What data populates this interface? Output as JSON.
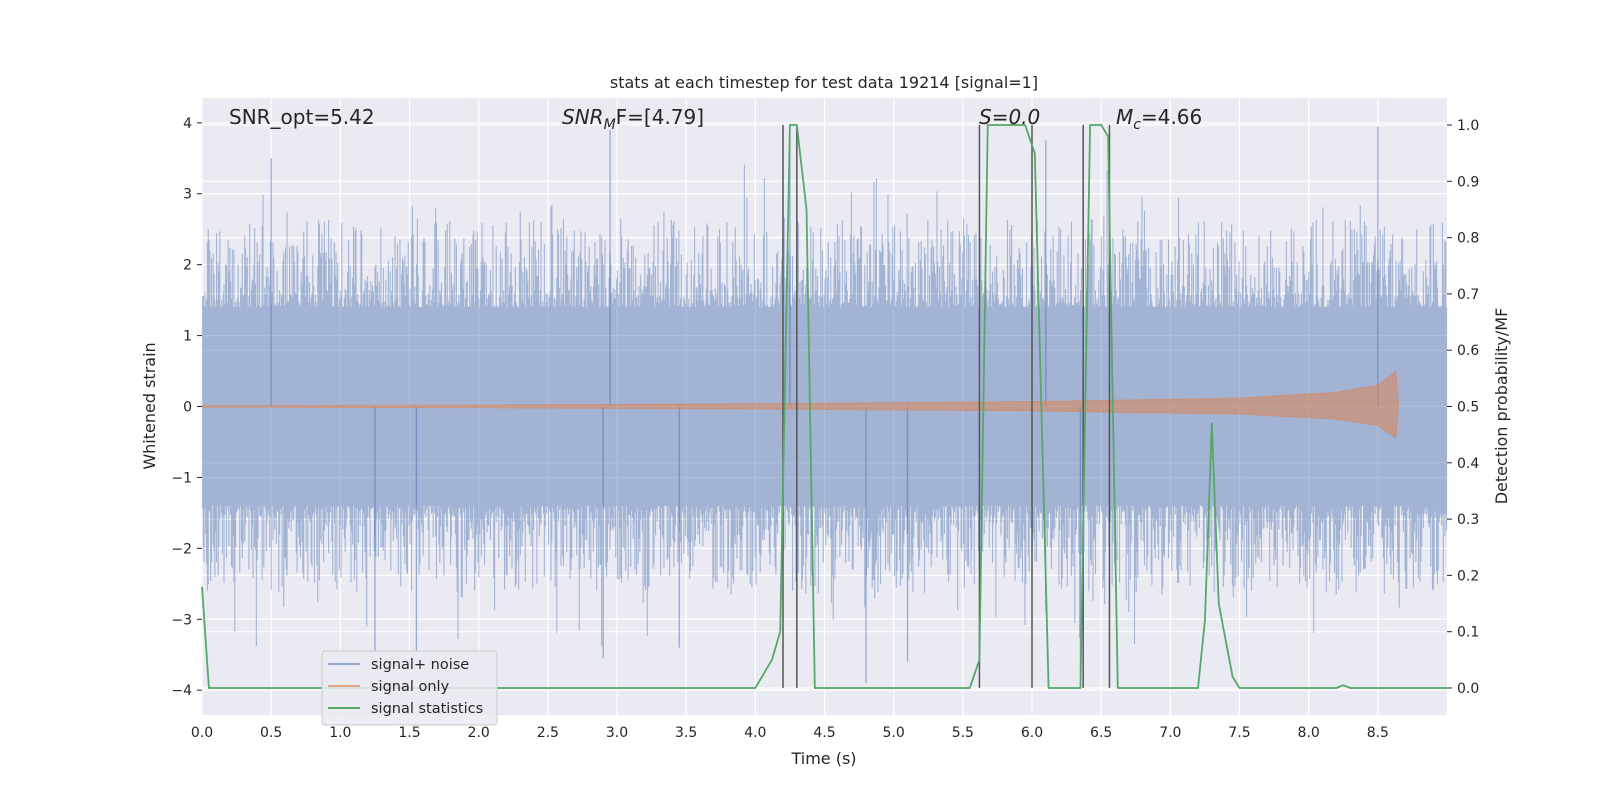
{
  "chart_data": {
    "type": "line",
    "title": "stats at each timestep for test data 19214 [signal=1]",
    "xlabel": "Time (s)",
    "ylabel_left": "Whitened strain",
    "ylabel_right": "Detection probability/MF",
    "xlim": [
      0.0,
      9.0
    ],
    "ylim_left": [
      -4.35,
      4.35
    ],
    "ylim_right": [
      -0.048,
      1.048
    ],
    "x_ticks": [
      "0.0",
      "0.5",
      "1.0",
      "1.5",
      "2.0",
      "2.5",
      "3.0",
      "3.5",
      "4.0",
      "4.5",
      "5.0",
      "5.5",
      "6.0",
      "6.5",
      "7.0",
      "7.5",
      "8.0",
      "8.5"
    ],
    "y_ticks_left": [
      "4",
      "3",
      "2",
      "1",
      "0",
      "−1",
      "−2",
      "−3",
      "−4"
    ],
    "y_ticks_right": [
      "1.0",
      "0.9",
      "0.8",
      "0.7",
      "0.6",
      "0.5",
      "0.4",
      "0.3",
      "0.2",
      "0.1",
      "0.0"
    ],
    "grid": true,
    "legend_position": "lower-left",
    "legend": [
      "signal+ noise",
      "signal only",
      "signal statistics"
    ],
    "annotations": {
      "snr_opt": "SNR_opt=5.42",
      "snr_mf_prefix": "SNR",
      "snr_mf_sub": "M",
      "snr_mf_suffix": "F=[4.79]",
      "s_label": "S=0.0",
      "mc_prefix": "M",
      "mc_sub": "c",
      "mc_suffix": "=4.66"
    },
    "colors": {
      "noise": "#4c72b0",
      "signal": "#dd8452",
      "stats": "#55a868",
      "vlines": "#555555",
      "background": "#eaeaf2"
    },
    "series": [
      {
        "name": "signal+ noise",
        "kind": "noise-envelope",
        "typical_range": [
          -2.0,
          2.0
        ],
        "peaks": [
          [
            0.5,
            3.5
          ],
          [
            1.25,
            -3.45
          ],
          [
            1.55,
            -3.45
          ],
          [
            2.95,
            3.9
          ],
          [
            2.9,
            -3.55
          ],
          [
            3.45,
            -3.4
          ],
          [
            4.25,
            3.8
          ],
          [
            4.8,
            -3.9
          ],
          [
            5.1,
            -3.6
          ],
          [
            6.1,
            3.75
          ],
          [
            6.35,
            -3.7
          ],
          [
            8.5,
            3.95
          ]
        ]
      },
      {
        "name": "signal only",
        "kind": "chirp-envelope",
        "amplitude": [
          [
            0.0,
            0.01
          ],
          [
            2.0,
            0.02
          ],
          [
            4.0,
            0.04
          ],
          [
            6.0,
            0.07
          ],
          [
            7.5,
            0.12
          ],
          [
            8.2,
            0.2
          ],
          [
            8.5,
            0.3
          ],
          [
            8.6,
            0.45
          ],
          [
            8.63,
            0.5
          ],
          [
            8.65,
            0.0
          ]
        ]
      },
      {
        "name": "signal statistics",
        "axis": "right",
        "x": [
          0.0,
          0.05,
          0.12,
          1.0,
          2.0,
          3.0,
          4.0,
          4.12,
          4.18,
          4.25,
          4.3,
          4.37,
          4.43,
          4.5,
          5.0,
          5.55,
          5.62,
          5.68,
          5.95,
          6.02,
          6.12,
          6.35,
          6.42,
          6.5,
          6.55,
          6.62,
          6.7,
          7.0,
          7.2,
          7.25,
          7.3,
          7.35,
          7.45,
          7.5,
          7.6,
          8.0,
          8.2,
          8.25,
          8.3,
          9.0
        ],
        "y": [
          0.18,
          0.0,
          0.0,
          0.0,
          0.0,
          0.0,
          0.0,
          0.05,
          0.1,
          1.0,
          1.0,
          0.85,
          0.0,
          0.0,
          0.0,
          0.0,
          0.05,
          1.0,
          1.0,
          0.95,
          0.0,
          0.0,
          1.0,
          1.0,
          0.98,
          0.0,
          0.0,
          0.0,
          0.0,
          0.12,
          0.47,
          0.15,
          0.02,
          0.0,
          0.0,
          0.0,
          0.0,
          0.005,
          0.0,
          0.0
        ]
      }
    ],
    "vertical_lines_x": [
      4.2,
      4.3,
      5.62,
      6.0,
      6.37,
      6.56
    ]
  }
}
